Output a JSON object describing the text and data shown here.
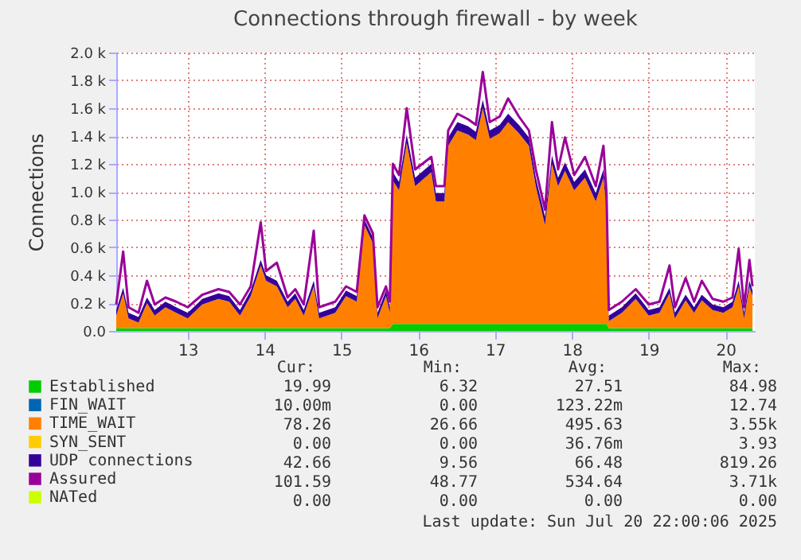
{
  "chart_data": {
    "type": "area",
    "title": "Connections through firewall - by week",
    "ylabel": "Connections",
    "stacked": true,
    "x": [
      12.07,
      12.16,
      12.23,
      12.36,
      12.47,
      12.57,
      12.71,
      12.85,
      13.0,
      13.19,
      13.4,
      13.54,
      13.68,
      13.82,
      13.95,
      14.02,
      14.16,
      14.3,
      14.4,
      14.51,
      14.64,
      14.71,
      14.92,
      15.06,
      15.2,
      15.3,
      15.41,
      15.47,
      15.58,
      15.63,
      15.67,
      15.75,
      15.85,
      15.96,
      16.17,
      16.23,
      16.34,
      16.39,
      16.51,
      16.65,
      16.75,
      16.84,
      16.93,
      17.06,
      17.17,
      17.31,
      17.44,
      17.53,
      17.65,
      17.74,
      17.82,
      17.91,
      18.03,
      18.17,
      18.31,
      18.41,
      18.45,
      18.48,
      18.65,
      18.83,
      19.0,
      19.14,
      19.27,
      19.34,
      19.48,
      19.59,
      19.69,
      19.83,
      19.97,
      20.09,
      20.17,
      20.24,
      20.31,
      20.35
    ],
    "xlim": [
      12.07,
      20.38
    ],
    "xticks": [
      13,
      14,
      15,
      16,
      17,
      18,
      19,
      20
    ],
    "ylim": [
      0,
      2000
    ],
    "yticks": [
      {
        "value": 0,
        "label": "0.0"
      },
      {
        "value": 200,
        "label": "0.2 k"
      },
      {
        "value": 400,
        "label": "0.4 k"
      },
      {
        "value": 600,
        "label": "0.6 k"
      },
      {
        "value": 800,
        "label": "0.8 k"
      },
      {
        "value": 1000,
        "label": "1.0 k"
      },
      {
        "value": 1200,
        "label": "1.2 k"
      },
      {
        "value": 1400,
        "label": "1.4 k"
      },
      {
        "value": 1600,
        "label": "1.6 k"
      },
      {
        "value": 1800,
        "label": "1.8 k"
      },
      {
        "value": 2000,
        "label": "2.0 k"
      }
    ],
    "grid": true,
    "legend": "bottom",
    "series": [
      {
        "name": "Established",
        "color": "#00cc00",
        "values": [
          20,
          20,
          20,
          20,
          20,
          20,
          20,
          20,
          20,
          20,
          20,
          20,
          20,
          20,
          20,
          20,
          20,
          20,
          20,
          20,
          20,
          20,
          20,
          20,
          20,
          20,
          20,
          20,
          20,
          20,
          50,
          50,
          50,
          50,
          50,
          50,
          50,
          50,
          50,
          50,
          50,
          50,
          50,
          50,
          50,
          50,
          50,
          50,
          50,
          50,
          50,
          50,
          50,
          50,
          50,
          50,
          50,
          20,
          20,
          20,
          20,
          20,
          20,
          20,
          20,
          20,
          20,
          20,
          20,
          20,
          20,
          20,
          20,
          20
        ]
      },
      {
        "name": "FIN_WAIT",
        "color": "#0066b3",
        "values": [
          null,
          null,
          null,
          null,
          null,
          null,
          null,
          null,
          null,
          null,
          null,
          null,
          null,
          null,
          null,
          null,
          null,
          null,
          null,
          null,
          null,
          null,
          null,
          null,
          null,
          null,
          null,
          null,
          null,
          null,
          null,
          null,
          null,
          null,
          null,
          null,
          null,
          null,
          null,
          null,
          null,
          null,
          null,
          null,
          null,
          null,
          null,
          null,
          null,
          null,
          null,
          null,
          null,
          null,
          null,
          null,
          null,
          null,
          null,
          null,
          null,
          null,
          null,
          null,
          null,
          null,
          null,
          null,
          null,
          null,
          null,
          null,
          null,
          null
        ]
      },
      {
        "name": "TIME_WAIT",
        "color": "#ff8000",
        "values": [
          90,
          250,
          70,
          40,
          180,
          90,
          150,
          110,
          70,
          170,
          210,
          190,
          90,
          230,
          450,
          340,
          300,
          150,
          210,
          90,
          300,
          70,
          110,
          230,
          190,
          740,
          610,
          70,
          230,
          110,
          1030,
          960,
          1300,
          990,
          1090,
          880,
          880,
          1280,
          1390,
          1360,
          1320,
          1550,
          1330,
          1370,
          1450,
          1370,
          1280,
          990,
          710,
          1150,
          990,
          1100,
          960,
          1050,
          880,
          1050,
          820,
          50,
          110,
          210,
          90,
          110,
          250,
          70,
          200,
          110,
          200,
          130,
          110,
          150,
          300,
          70,
          300,
          230
        ]
      },
      {
        "name": "SYN_SENT",
        "color": "#ffcc00",
        "values": [
          null,
          null,
          null,
          null,
          null,
          null,
          null,
          null,
          null,
          null,
          null,
          null,
          null,
          null,
          null,
          null,
          null,
          null,
          null,
          null,
          null,
          null,
          null,
          null,
          null,
          null,
          null,
          null,
          null,
          null,
          null,
          null,
          null,
          null,
          null,
          null,
          null,
          null,
          null,
          null,
          null,
          null,
          null,
          null,
          null,
          null,
          null,
          null,
          null,
          null,
          null,
          null,
          null,
          null,
          null,
          null,
          null,
          null,
          null,
          null,
          null,
          null,
          null,
          null,
          null,
          null,
          null,
          null,
          null,
          null,
          null,
          null,
          null,
          null
        ]
      },
      {
        "name": "UDP connections",
        "color": "#330099",
        "values": [
          40,
          40,
          40,
          40,
          40,
          40,
          40,
          40,
          40,
          40,
          40,
          40,
          40,
          40,
          40,
          40,
          40,
          40,
          40,
          40,
          40,
          40,
          40,
          40,
          40,
          40,
          40,
          40,
          40,
          40,
          60,
          60,
          60,
          60,
          60,
          60,
          60,
          60,
          60,
          60,
          60,
          60,
          60,
          60,
          60,
          60,
          60,
          60,
          60,
          60,
          60,
          60,
          60,
          60,
          60,
          60,
          60,
          40,
          40,
          40,
          40,
          40,
          40,
          40,
          40,
          40,
          40,
          40,
          40,
          40,
          40,
          40,
          40,
          40
        ]
      },
      {
        "name": "Assured",
        "color": "#990099",
        "type": "line",
        "values": [
          190,
          570,
          170,
          130,
          360,
          190,
          240,
          210,
          170,
          260,
          300,
          280,
          190,
          320,
          780,
          430,
          490,
          240,
          300,
          190,
          720,
          170,
          210,
          320,
          280,
          830,
          700,
          170,
          320,
          210,
          1200,
          1120,
          1600,
          1160,
          1250,
          1040,
          1040,
          1440,
          1560,
          1520,
          1480,
          1860,
          1500,
          1540,
          1670,
          1540,
          1440,
          1160,
          870,
          1500,
          1160,
          1390,
          1120,
          1250,
          1040,
          1330,
          990,
          150,
          210,
          300,
          190,
          210,
          470,
          170,
          380,
          210,
          360,
          230,
          210,
          240,
          590,
          170,
          510,
          320
        ]
      },
      {
        "name": "NATed",
        "color": "#ccff00",
        "type": "line",
        "values": [
          null,
          null,
          null,
          null,
          null,
          null,
          null,
          null,
          null,
          null,
          null,
          null,
          null,
          null,
          null,
          null,
          null,
          null,
          null,
          null,
          null,
          null,
          null,
          null,
          null,
          null,
          null,
          null,
          null,
          null,
          null,
          null,
          null,
          null,
          null,
          null,
          null,
          null,
          null,
          null,
          null,
          null,
          null,
          null,
          null,
          null,
          null,
          null,
          null,
          null,
          null,
          null,
          null,
          null,
          null,
          null,
          null,
          null,
          null,
          null,
          null,
          null,
          null,
          null,
          null,
          null,
          null,
          null,
          null,
          null,
          null,
          null,
          null,
          null
        ]
      }
    ],
    "annotations": [
      "Cur:",
      "Min:",
      "Avg:",
      "Max:",
      "19.99",
      "6.32",
      "27.51",
      "84.98",
      "10.00m",
      "0.00",
      "123.22m",
      "12.74",
      "78.26",
      "26.66",
      "495.63",
      "3.55k",
      "0.00",
      "0.00",
      "36.76m",
      "3.93",
      "42.66",
      "9.56",
      "66.48",
      "819.26",
      "101.59",
      "48.77",
      "534.64",
      "3.71k",
      "0.00",
      "0.00",
      "0.00",
      "0.00",
      "Last update: Sun Jul 20 22:00:06 2025"
    ]
  }
}
